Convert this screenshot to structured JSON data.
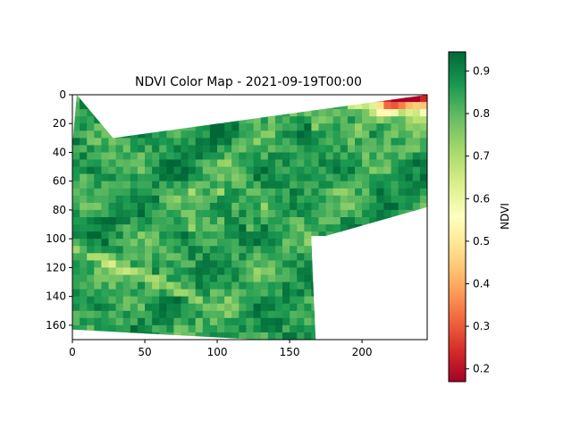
{
  "chart_data": {
    "type": "heatmap",
    "title": "NDVI Color Map - 2021-09-19T00:00",
    "xlabel": "",
    "ylabel": "",
    "x_ticks": [
      0,
      50,
      100,
      150,
      200
    ],
    "y_ticks": [
      0,
      20,
      40,
      60,
      80,
      100,
      120,
      140,
      160
    ],
    "xlim": [
      0,
      245
    ],
    "ylim": [
      170,
      0
    ],
    "colormap": "RdYlGn",
    "colorbar": {
      "label": "NDVI",
      "range": [
        0.17,
        0.945
      ],
      "ticks": [
        0.2,
        0.3,
        0.4,
        0.5,
        0.6,
        0.7,
        0.8,
        0.9
      ]
    },
    "valid_region_polygon": [
      [
        3,
        0
      ],
      [
        28,
        30
      ],
      [
        245,
        0
      ],
      [
        245,
        78
      ],
      [
        175,
        98
      ],
      [
        165,
        98
      ],
      [
        165,
        102
      ],
      [
        168,
        170
      ],
      [
        128,
        170
      ],
      [
        0,
        163
      ],
      [
        0,
        35
      ],
      [
        3,
        0
      ]
    ],
    "features": [
      {
        "description": "low NDVI (red) band",
        "x_range": [
          190,
          245
        ],
        "y_range": [
          0,
          12
        ],
        "ndvi": 0.25
      },
      {
        "description": "moderate NDVI (yellow) band",
        "x_range": [
          165,
          235
        ],
        "y_range": [
          12,
          45
        ],
        "ndvi": 0.65
      },
      {
        "description": "diagonal yellow strip",
        "x_range": [
          0,
          80
        ],
        "y_range": [
          105,
          135
        ],
        "ndvi": 0.65
      },
      {
        "description": "bulk vegetation",
        "ndvi": 0.85
      }
    ]
  }
}
